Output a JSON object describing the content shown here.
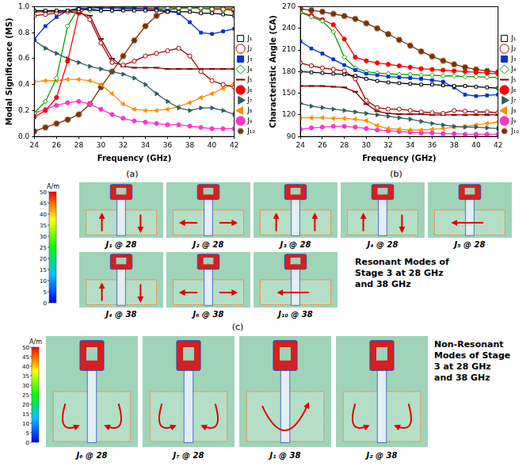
{
  "chart_data": [
    {
      "type": "line",
      "x_label": "Frequency (GHz)",
      "y_label": "Modal Significance (MS)",
      "x": [
        24,
        25,
        26,
        27,
        28,
        29,
        30,
        31,
        32,
        33,
        34,
        35,
        36,
        37,
        38,
        39,
        40,
        41,
        42
      ],
      "xlim": [
        24,
        42
      ],
      "xticks": [
        24,
        26,
        28,
        30,
        32,
        34,
        36,
        38,
        40,
        42
      ],
      "ylim": [
        0,
        1
      ],
      "yticks": [
        {
          "value": 0,
          "label": "0.0"
        },
        0.2,
        0.4,
        0.6,
        0.8,
        {
          "value": 1,
          "label": "1.0"
        }
      ],
      "grid": false,
      "legend": "right",
      "series": [
        {
          "name": "J₁",
          "color": "#000000",
          "marker": "open-square",
          "values": [
            0.97,
            0.97,
            0.97,
            0.97,
            0.98,
            0.98,
            0.97,
            0.97,
            0.97,
            0.97,
            0.97,
            0.97,
            0.96,
            0.96,
            0.96,
            0.95,
            0.95,
            0.94,
            0.93
          ]
        },
        {
          "name": "J₂",
          "color": "#a00000",
          "marker": "open-circle",
          "values": [
            0.93,
            0.94,
            0.95,
            0.96,
            0.97,
            0.9,
            0.72,
            0.57,
            0.55,
            0.58,
            0.62,
            0.64,
            0.66,
            0.68,
            0.62,
            0.5,
            0.43,
            0.4,
            0.38
          ]
        },
        {
          "name": "J₃",
          "color": "#0033cc",
          "marker": "square",
          "values": [
            0.75,
            0.85,
            0.92,
            0.97,
            0.99,
            0.99,
            0.99,
            0.99,
            0.99,
            0.99,
            0.98,
            0.98,
            0.97,
            0.95,
            0.88,
            0.8,
            0.79,
            0.81,
            0.83
          ]
        },
        {
          "name": "J₄",
          "color": "#00a000",
          "marker": "open-diamond",
          "values": [
            0.18,
            0.27,
            0.45,
            0.85,
            0.99,
            0.97,
            0.97,
            0.97,
            0.98,
            0.98,
            0.98,
            0.98,
            0.99,
            0.99,
            0.99,
            0.99,
            0.98,
            0.98,
            0.98
          ]
        },
        {
          "name": "J₅",
          "color": "#800000",
          "marker": "dash",
          "values": [
            0.96,
            0.96,
            0.96,
            0.96,
            0.95,
            0.93,
            0.75,
            0.6,
            0.54,
            0.53,
            0.53,
            0.53,
            0.52,
            0.52,
            0.52,
            0.52,
            0.52,
            0.52,
            0.52
          ]
        },
        {
          "name": "J₆",
          "color": "#ff0000",
          "marker": "circle",
          "values": [
            0.15,
            0.2,
            0.3,
            0.58,
            0.95,
            1,
            0.99,
            0.99,
            0.99,
            0.99,
            0.99,
            0.99,
            0.99,
            0.99,
            0.99,
            0.99,
            0.99,
            0.99,
            0.99
          ]
        },
        {
          "name": "J₇",
          "color": "#2e5e5e",
          "marker": "triangle-right",
          "values": [
            0.74,
            0.68,
            0.64,
            0.6,
            0.57,
            0.54,
            0.52,
            0.5,
            0.48,
            0.45,
            0.4,
            0.33,
            0.27,
            0.22,
            0.2,
            0.22,
            0.22,
            0.2,
            0.17
          ]
        },
        {
          "name": "J₈",
          "color": "#ff8c00",
          "marker": "triangle-left",
          "values": [
            0.42,
            0.43,
            0.43,
            0.44,
            0.44,
            0.43,
            0.4,
            0.33,
            0.25,
            0.21,
            0.2,
            0.2,
            0.21,
            0.23,
            0.26,
            0.3,
            0.33,
            0.37,
            0.41
          ]
        },
        {
          "name": "J₉",
          "color": "#ff33cc",
          "marker": "circle",
          "values": [
            0.18,
            0.21,
            0.24,
            0.26,
            0.27,
            0.25,
            0.21,
            0.17,
            0.14,
            0.12,
            0.11,
            0.1,
            0.09,
            0.09,
            0.08,
            0.07,
            0.06,
            0.06,
            0.06
          ]
        },
        {
          "name": "J₁₀",
          "color": "#7b3300",
          "marker": "hexagon",
          "values": [
            0.04,
            0.07,
            0.1,
            0.13,
            0.17,
            0.25,
            0.38,
            0.5,
            0.62,
            0.74,
            0.85,
            0.93,
            0.97,
            0.99,
            1,
            0.99,
            0.98,
            0.98,
            0.97
          ]
        }
      ]
    },
    {
      "type": "line",
      "x_label": "Frequency (GHz)",
      "y_label": "Characteristic Angle (CA)",
      "x": [
        24,
        25,
        26,
        27,
        28,
        29,
        30,
        31,
        32,
        33,
        34,
        35,
        36,
        37,
        38,
        39,
        40,
        41,
        42
      ],
      "xlim": [
        24,
        42
      ],
      "xticks": [
        24,
        26,
        28,
        30,
        32,
        34,
        36,
        38,
        40,
        42
      ],
      "ylim": [
        90,
        270
      ],
      "yticks": [
        90,
        120,
        150,
        180,
        210,
        240,
        270
      ],
      "grid": false,
      "legend": "right",
      "series": [
        {
          "name": "J₁",
          "color": "#000000",
          "marker": "open-square",
          "values": [
            180,
            179,
            178,
            177,
            176,
            174,
            170,
            167,
            165,
            164,
            163,
            162,
            162,
            161,
            160,
            160,
            159,
            158,
            157
          ]
        },
        {
          "name": "J₂",
          "color": "#a00000",
          "marker": "open-circle",
          "values": [
            192,
            188,
            185,
            183,
            181,
            170,
            140,
            130,
            128,
            128,
            126,
            124,
            123,
            122,
            126,
            125,
            124,
            124,
            123
          ]
        },
        {
          "name": "J₃",
          "color": "#0033cc",
          "marker": "square",
          "values": [
            222,
            212,
            205,
            197,
            189,
            182,
            177,
            175,
            173,
            172,
            171,
            170,
            168,
            166,
            158,
            148,
            146,
            147,
            148
          ]
        },
        {
          "name": "J₄",
          "color": "#00a000",
          "marker": "open-diamond",
          "values": [
            262,
            256,
            250,
            235,
            200,
            185,
            180,
            178,
            177,
            176,
            176,
            175,
            175,
            174,
            174,
            173,
            173,
            172,
            172
          ]
        },
        {
          "name": "J₅",
          "color": "#800000",
          "marker": "dash",
          "values": [
            160,
            160,
            160,
            159,
            158,
            152,
            135,
            125,
            122,
            121,
            121,
            121,
            120,
            120,
            120,
            120,
            120,
            120,
            120
          ]
        },
        {
          "name": "J₆",
          "color": "#ff0000",
          "marker": "circle",
          "values": [
            262,
            258,
            252,
            245,
            225,
            200,
            195,
            192,
            190,
            188,
            186,
            184,
            183,
            182,
            181,
            180,
            179,
            178,
            177
          ]
        },
        {
          "name": "J₇",
          "color": "#2e5e5e",
          "marker": "triangle-right",
          "values": [
            136,
            132,
            130,
            128,
            126,
            124,
            122,
            120,
            118,
            116,
            114,
            111,
            108,
            106,
            104,
            103,
            103,
            102,
            101
          ]
        },
        {
          "name": "J₈",
          "color": "#ff8c00",
          "marker": "triangle-left",
          "values": [
            116,
            116,
            116,
            115,
            115,
            114,
            112,
            105,
            101,
            100,
            99,
            99,
            100,
            101,
            103,
            104,
            106,
            108,
            110
          ]
        },
        {
          "name": "J₉",
          "color": "#ff33cc",
          "marker": "circle",
          "values": [
            100,
            102,
            103,
            104,
            104,
            103,
            101,
            99,
            98,
            97,
            96,
            95,
            95,
            94,
            94,
            93,
            93,
            93,
            93
          ]
        },
        {
          "name": "J₁₀",
          "color": "#7b3300",
          "marker": "hexagon",
          "values": [
            267,
            265,
            263,
            260,
            257,
            253,
            247,
            240,
            232,
            224,
            216,
            208,
            201,
            195,
            190,
            186,
            183,
            181,
            179
          ]
        }
      ]
    }
  ],
  "figure": {
    "panel_labels": [
      "(a)",
      "(b)",
      "(c)"
    ],
    "colorbar": {
      "label": "A/m",
      "range": [
        0,
        50
      ],
      "ticks": [
        0,
        5,
        10,
        15,
        20,
        25,
        30,
        35,
        40,
        45,
        50
      ]
    },
    "groups": [
      {
        "title": "Resonant Modes of Stage 3 at 28 GHz and 38 GHz",
        "items": [
          "J₁ @ 28",
          "J₂ @ 28",
          "J₃ @ 28",
          "J₄ @ 28",
          "J₅ @ 28",
          "J₄ @ 38",
          "J₆ @ 38",
          "J₁₀ @ 38"
        ]
      },
      {
        "title": "Non-Resonant Modes of Stage 3 at 28 GHz and 38 GHz",
        "items": [
          "J₆ @ 28",
          "J₇ @ 28",
          "J₁ @ 38",
          "J₂ @ 38"
        ]
      }
    ]
  }
}
